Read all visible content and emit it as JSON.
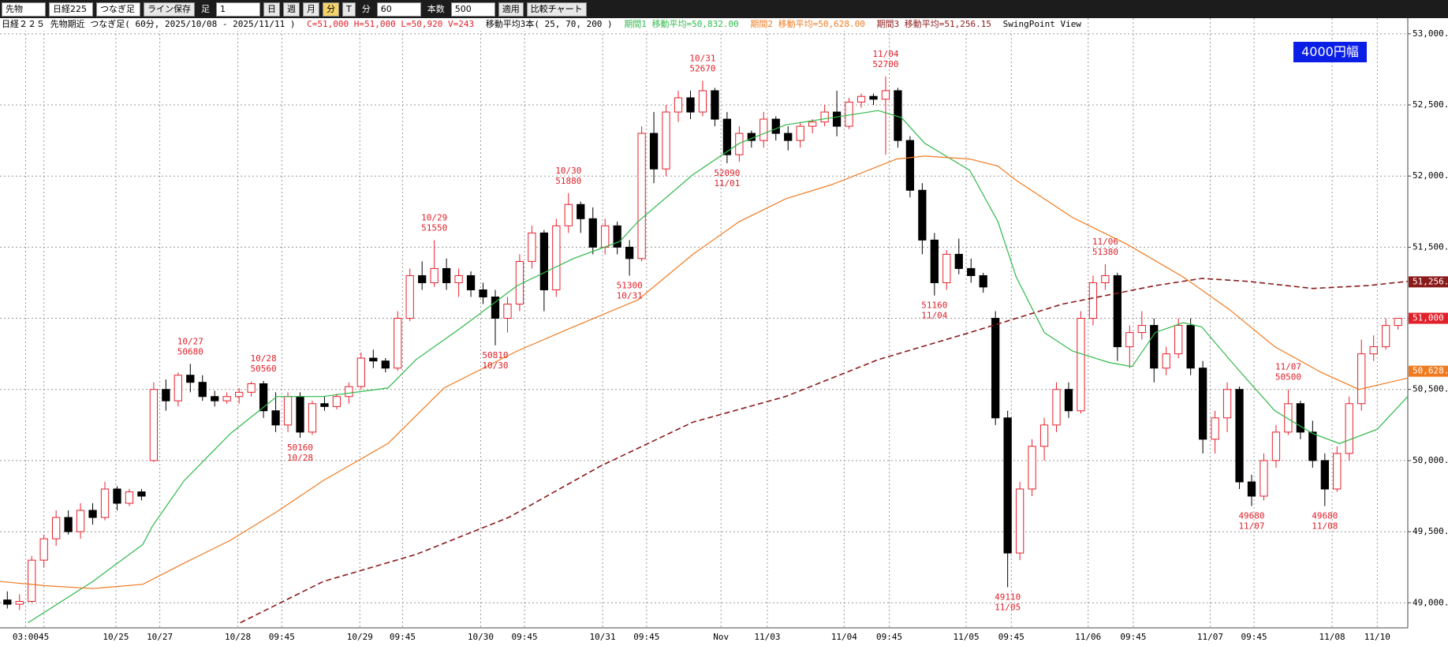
{
  "toolbar": {
    "market": "先物",
    "index": "日経225",
    "mode": "つなぎ足",
    "save": "ライン保存",
    "bar": "足",
    "bar_input": "1",
    "periods": [
      "日",
      "週",
      "月",
      "分",
      "T"
    ],
    "unit": "分",
    "minutes": "60",
    "count_label": "本数",
    "count": "500",
    "apply": "適用",
    "compare": "比較チャート"
  },
  "info": {
    "title": "日経２２５ 先物期近 つなぎ足( 60分, 2025/10/08 - 2025/11/11 )",
    "ohlcv": "C=51,000 H=51,000 L=50,920 V=243",
    "ma_setting": "移動平均3本( 25, 70, 200 )",
    "ma1": "期間1 移動平均=50,832.00",
    "ma2": "期間2 移動平均=50,628.00",
    "ma3": "期間3 移動平均=51,256.15",
    "view": "SwingPoint View"
  },
  "chart_data": {
    "type": "candlestick",
    "badge": "4000円幅",
    "up_color": "#e8202a",
    "down_color": "#000000",
    "grid": true,
    "xlim": [
      -0.6,
      114.8
    ],
    "ylim": [
      48824,
      53110
    ],
    "yticks": [
      {
        "value": 49000,
        "label": "49,000."
      },
      {
        "value": 49500,
        "label": "49,500."
      },
      {
        "value": 50000,
        "label": "50,000."
      },
      {
        "value": 50500,
        "label": "50,500."
      },
      {
        "value": 51000,
        "label": "51,000."
      },
      {
        "value": 51500,
        "label": "51,500."
      },
      {
        "value": 52000,
        "label": "52,000."
      },
      {
        "value": 52500,
        "label": "52,500."
      },
      {
        "value": 53000,
        "label": "53,000."
      }
    ],
    "xticks": [
      {
        "value": 1.5,
        "label": "03:00"
      },
      {
        "value": 3,
        "label": "45"
      },
      {
        "value": 8.9,
        "label": "10/25"
      },
      {
        "value": 12.5,
        "label": "10/27"
      },
      {
        "value": 18.9,
        "label": "10/28"
      },
      {
        "value": 22.5,
        "label": "09:45"
      },
      {
        "value": 28.9,
        "label": "10/29"
      },
      {
        "value": 32.4,
        "label": "09:45"
      },
      {
        "value": 38.8,
        "label": "10/30"
      },
      {
        "value": 42.4,
        "label": "09:45"
      },
      {
        "value": 48.8,
        "label": "10/31"
      },
      {
        "value": 52.4,
        "label": "09:45"
      },
      {
        "value": 58.5,
        "label": "Nov"
      },
      {
        "value": 62.3,
        "label": "11/03"
      },
      {
        "value": 68.6,
        "label": "11/04"
      },
      {
        "value": 72.3,
        "label": "09:45"
      },
      {
        "value": 78.6,
        "label": "11/05"
      },
      {
        "value": 82.3,
        "label": "09:45"
      },
      {
        "value": 88.6,
        "label": "11/06"
      },
      {
        "value": 92.3,
        "label": "09:45"
      },
      {
        "value": 98.6,
        "label": "11/07"
      },
      {
        "value": 102.2,
        "label": "09:45"
      },
      {
        "value": 108.6,
        "label": "11/08"
      },
      {
        "value": 112.3,
        "label": "11/10"
      }
    ],
    "candles": [
      [
        49020,
        49080,
        48960,
        48990
      ],
      [
        48990,
        49060,
        48950,
        49010
      ],
      [
        49010,
        49330,
        49000,
        49300
      ],
      [
        49300,
        49480,
        49250,
        49450
      ],
      [
        49450,
        49650,
        49400,
        49600
      ],
      [
        49600,
        49650,
        49480,
        49500
      ],
      [
        49500,
        49700,
        49450,
        49650
      ],
      [
        49650,
        49700,
        49550,
        49600
      ],
      [
        49600,
        49850,
        49580,
        49800
      ],
      [
        49800,
        49820,
        49650,
        49700
      ],
      [
        49700,
        49800,
        49680,
        49780
      ],
      [
        49780,
        49800,
        49720,
        49750
      ],
      [
        50000,
        50550,
        49990,
        50500
      ],
      [
        50500,
        50570,
        50350,
        50420
      ],
      [
        50420,
        50620,
        50380,
        50600
      ],
      [
        50600,
        50680,
        50480,
        50550
      ],
      [
        50550,
        50600,
        50420,
        50450
      ],
      [
        50450,
        50490,
        50380,
        50420
      ],
      [
        50420,
        50480,
        50400,
        50450
      ],
      [
        50450,
        50510,
        50400,
        50480
      ],
      [
        50480,
        50555,
        50450,
        50540
      ],
      [
        50540,
        50560,
        50300,
        50350
      ],
      [
        50350,
        50480,
        50200,
        50250
      ],
      [
        50250,
        50480,
        50200,
        50450
      ],
      [
        50450,
        50480,
        50160,
        50200
      ],
      [
        50200,
        50420,
        50180,
        50400
      ],
      [
        50400,
        50450,
        50350,
        50380
      ],
      [
        50380,
        50470,
        50360,
        50450
      ],
      [
        50450,
        50550,
        50400,
        50520
      ],
      [
        50520,
        50760,
        50500,
        50720
      ],
      [
        50720,
        50780,
        50650,
        50700
      ],
      [
        50700,
        50720,
        50620,
        50650
      ],
      [
        50650,
        51050,
        50630,
        51000
      ],
      [
        51000,
        51350,
        50980,
        51300
      ],
      [
        51300,
        51400,
        51200,
        51250
      ],
      [
        51250,
        51550,
        51220,
        51350
      ],
      [
        51350,
        51420,
        51200,
        51250
      ],
      [
        51250,
        51350,
        51150,
        51300
      ],
      [
        51300,
        51330,
        51150,
        51200
      ],
      [
        51200,
        51250,
        51100,
        51150
      ],
      [
        51150,
        51200,
        50810,
        51000
      ],
      [
        51000,
        51150,
        50900,
        51100
      ],
      [
        51100,
        51450,
        51050,
        51400
      ],
      [
        51400,
        51650,
        51350,
        51600
      ],
      [
        51600,
        51620,
        51050,
        51200
      ],
      [
        51200,
        51700,
        51150,
        51650
      ],
      [
        51650,
        51880,
        51600,
        51800
      ],
      [
        51800,
        51820,
        51600,
        51700
      ],
      [
        51700,
        51780,
        51450,
        51500
      ],
      [
        51500,
        51700,
        51450,
        51650
      ],
      [
        51650,
        51680,
        51450,
        51500
      ],
      [
        51500,
        51550,
        51300,
        51420
      ],
      [
        51420,
        52350,
        51400,
        52300
      ],
      [
        52300,
        52450,
        51950,
        52050
      ],
      [
        52050,
        52500,
        52000,
        52450
      ],
      [
        52450,
        52600,
        52380,
        52550
      ],
      [
        52550,
        52600,
        52400,
        52450
      ],
      [
        52450,
        52670,
        52420,
        52600
      ],
      [
        52600,
        52620,
        52350,
        52400
      ],
      [
        52400,
        52450,
        52090,
        52150
      ],
      [
        52150,
        52350,
        52100,
        52300
      ],
      [
        52300,
        52320,
        52200,
        52250
      ],
      [
        52250,
        52450,
        52200,
        52400
      ],
      [
        52400,
        52420,
        52250,
        52300
      ],
      [
        52300,
        52350,
        52180,
        52250
      ],
      [
        52250,
        52380,
        52200,
        52350
      ],
      [
        52350,
        52400,
        52300,
        52380
      ],
      [
        52380,
        52500,
        52350,
        52450
      ],
      [
        52450,
        52600,
        52280,
        52350
      ],
      [
        52350,
        52550,
        52330,
        52520
      ],
      [
        52520,
        52580,
        52480,
        52560
      ],
      [
        52560,
        52580,
        52500,
        52540
      ],
      [
        52540,
        52700,
        52150,
        52600
      ],
      [
        52600,
        52620,
        52200,
        52250
      ],
      [
        52250,
        52280,
        51850,
        51900
      ],
      [
        51900,
        51950,
        51450,
        51550
      ],
      [
        51550,
        51600,
        51160,
        51250
      ],
      [
        51250,
        51480,
        51200,
        51450
      ],
      [
        51450,
        51560,
        51310,
        51350
      ],
      [
        51350,
        51420,
        51250,
        51300
      ],
      [
        51300,
        51320,
        51180,
        51220
      ],
      [
        51000,
        51050,
        50250,
        50300
      ],
      [
        50300,
        50350,
        49110,
        49350
      ],
      [
        49350,
        49850,
        49300,
        49800
      ],
      [
        49800,
        50150,
        49750,
        50100
      ],
      [
        50100,
        50300,
        50000,
        50250
      ],
      [
        50250,
        50550,
        50200,
        50500
      ],
      [
        50500,
        50550,
        50300,
        50350
      ],
      [
        50350,
        51050,
        50330,
        51000
      ],
      [
        51000,
        51300,
        50950,
        51250
      ],
      [
        51250,
        51380,
        51200,
        51300
      ],
      [
        51300,
        51320,
        50700,
        50800
      ],
      [
        50800,
        50950,
        50650,
        50900
      ],
      [
        50900,
        51050,
        50850,
        50950
      ],
      [
        50950,
        51000,
        50550,
        50650
      ],
      [
        50650,
        50800,
        50600,
        50750
      ],
      [
        50750,
        51000,
        50720,
        50950
      ],
      [
        50950,
        51000,
        50600,
        50650
      ],
      [
        50650,
        50700,
        50050,
        50150
      ],
      [
        50150,
        50350,
        50050,
        50300
      ],
      [
        50300,
        50550,
        50200,
        50500
      ],
      [
        50500,
        50520,
        49800,
        49850
      ],
      [
        49850,
        49900,
        49680,
        49750
      ],
      [
        49750,
        50050,
        49720,
        50000
      ],
      [
        50000,
        50250,
        49950,
        50200
      ],
      [
        50200,
        50500,
        50180,
        50400
      ],
      [
        50400,
        50420,
        50150,
        50200
      ],
      [
        50200,
        50280,
        49950,
        50000
      ],
      [
        50000,
        50050,
        49680,
        49800
      ],
      [
        49800,
        50100,
        49780,
        50050
      ],
      [
        50050,
        50450,
        50000,
        50400
      ],
      [
        50400,
        50850,
        50350,
        50750
      ],
      [
        50750,
        50880,
        50700,
        50800
      ],
      [
        50800,
        51000,
        50780,
        50950
      ],
      [
        50950,
        51000,
        50920,
        51000
      ]
    ],
    "moving_averages": [
      {
        "color": "#2fb84a",
        "dash": false,
        "x": [
          1.7,
          7,
          11.1,
          11.9,
          14.5,
          18.3,
          22.1,
          25.9,
          31.2,
          33.5,
          37.3,
          41.8,
          46.4,
          50.2,
          51.7,
          56.2,
          60,
          63.8,
          67.6,
          71.4,
          73.3,
          75.2,
          78.9,
          81.2,
          82.7,
          85,
          87.3,
          90.3,
          92.2,
          94.1,
          96.4,
          97.9,
          100.9,
          103.9,
          107,
          109.2,
          112.3,
          114.8
        ],
        "values": [
          48860,
          49150,
          49410,
          49540,
          49860,
          50190,
          50450,
          50450,
          50510,
          50710,
          50940,
          51230,
          51420,
          51540,
          51680,
          52010,
          52230,
          52360,
          52410,
          52460,
          52410,
          52230,
          52040,
          51680,
          51290,
          50900,
          50770,
          50690,
          50660,
          50900,
          50970,
          50940,
          50640,
          50350,
          50190,
          50120,
          50220,
          50450
        ]
      },
      {
        "color": "#f07a20",
        "dash": false,
        "x": [
          -0.6,
          3.2,
          7,
          11.1,
          14.5,
          18.3,
          22.1,
          25.9,
          31.2,
          35.8,
          41.8,
          46.4,
          51.7,
          56.2,
          60,
          63.8,
          67.6,
          72.9,
          75.2,
          78.9,
          81.2,
          82.7,
          87.3,
          91.8,
          96.4,
          100.2,
          103.9,
          107.7,
          110.8,
          114.8
        ],
        "values": [
          49150,
          49120,
          49100,
          49130,
          49280,
          49440,
          49640,
          49860,
          50120,
          50510,
          50770,
          50940,
          51130,
          51450,
          51680,
          51840,
          51940,
          52120,
          52140,
          52120,
          52070,
          51970,
          51710,
          51520,
          51290,
          51060,
          50800,
          50620,
          50500,
          50580
        ]
      },
      {
        "color": "#8b1a1a",
        "dash": true,
        "x": [
          19.1,
          25.9,
          33.5,
          41.1,
          48.6,
          56.2,
          63.8,
          71.4,
          78.9,
          86.5,
          94.1,
          97.9,
          101.7,
          107,
          111.5,
          114.8
        ],
        "values": [
          48860,
          49150,
          49340,
          49600,
          49960,
          50270,
          50450,
          50710,
          50900,
          51100,
          51230,
          51280,
          51260,
          51210,
          51230,
          51260
        ]
      }
    ],
    "swing_highs": [
      {
        "date": "10/27",
        "price": 50680
      },
      {
        "date": "10/28",
        "price": 50560
      },
      {
        "date": "10/29",
        "price": 51550
      },
      {
        "date": "10/30",
        "price": 51880
      },
      {
        "date": "10/31",
        "price": 52670
      },
      {
        "date": "11/04",
        "price": 52700
      },
      {
        "date": "11/06",
        "price": 51380
      },
      {
        "date": "11/07",
        "price": 50500
      }
    ],
    "swing_lows": [
      {
        "date": "10/28",
        "price": 50160
      },
      {
        "date": "10/30",
        "price": 50810
      },
      {
        "date": "10/31",
        "price": 51300
      },
      {
        "date": "11/01",
        "price": 52090
      },
      {
        "date": "11/04",
        "price": 51160
      },
      {
        "date": "11/05",
        "price": 49110
      },
      {
        "date": "11/07",
        "price": 49680
      },
      {
        "date": "11/08",
        "price": 49680
      }
    ],
    "price_tags": [
      {
        "value": 51256.15,
        "label": "51,256.",
        "color": "#8b1a1a"
      },
      {
        "value": 51000,
        "label": "51,000",
        "color": "#e0202a"
      },
      {
        "value": 50628,
        "label": "50,628.",
        "color": "#f07a20"
      }
    ]
  }
}
